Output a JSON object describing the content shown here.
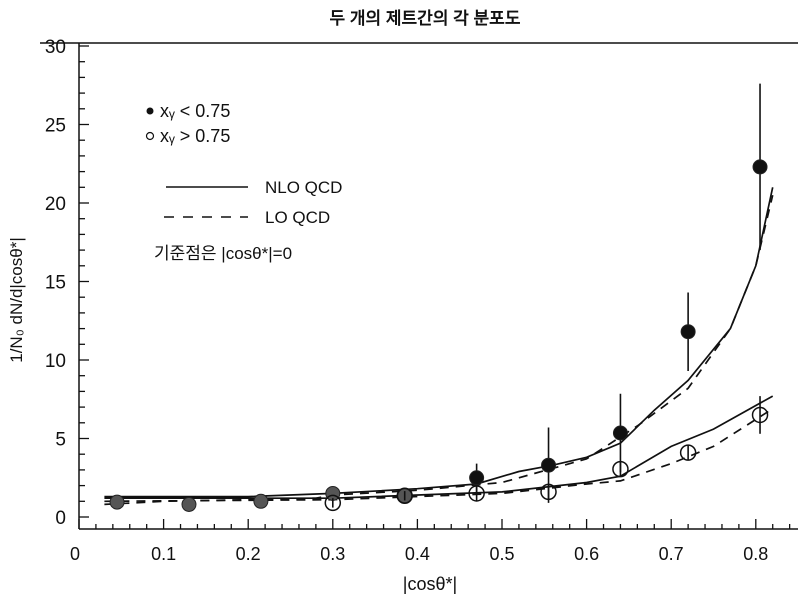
{
  "chart_data": {
    "type": "scatter",
    "title": "두 개의 제트간의 각 분포도",
    "xlabel": "|cosθ*|",
    "ylabel": "1/N₀ dN/d|cosθ*|",
    "xlim": [
      0,
      0.85
    ],
    "ylim": [
      0,
      30
    ],
    "xticks": [
      "0",
      "0.1",
      "0.2",
      "0.3",
      "0.4",
      "0.5",
      "0.6",
      "0.7",
      "0.8"
    ],
    "xtick_values": [
      0,
      0.1,
      0.2,
      0.3,
      0.4,
      0.5,
      0.6,
      0.7,
      0.8
    ],
    "yticks": [
      "0",
      "5",
      "10",
      "15",
      "20",
      "25",
      "30"
    ],
    "ytick_values": [
      0,
      5,
      10,
      15,
      20,
      25,
      30
    ],
    "grid": false,
    "legend_position": "top-left",
    "legend": {
      "filled": "xᵧ < 0.75",
      "open": "xᵧ > 0.75",
      "nlo": "NLO QCD",
      "lo": "LO QCD",
      "note": "기준점은 |cosθ*|=0"
    },
    "series": [
      {
        "name": "xᵧ < 0.75",
        "marker": "filled",
        "x": [
          0.045,
          0.13,
          0.215,
          0.3,
          0.385,
          0.47,
          0.555,
          0.64,
          0.72,
          0.805
        ],
        "y": [
          0.95,
          0.8,
          1.0,
          1.5,
          1.35,
          2.5,
          3.3,
          5.35,
          11.8,
          22.3
        ],
        "err": [
          0.3,
          0.3,
          0.2,
          0.3,
          0.3,
          0.9,
          2.4,
          2.5,
          2.5,
          5.3
        ]
      },
      {
        "name": "xᵧ > 0.75",
        "marker": "open",
        "x": [
          0.3,
          0.385,
          0.47,
          0.555,
          0.64,
          0.72,
          0.805
        ],
        "y": [
          0.9,
          1.35,
          1.5,
          1.6,
          3.05,
          4.1,
          6.5
        ],
        "err": [
          0.3,
          0.3,
          0.5,
          0.5,
          0.5,
          0.5,
          1.2
        ]
      },
      {
        "name": "NLO QCD (xᵧ < 0.75)",
        "style": "solid",
        "x": [
          0.03,
          0.2,
          0.3,
          0.4,
          0.47,
          0.52,
          0.56,
          0.6,
          0.64,
          0.68,
          0.72,
          0.77,
          0.8,
          0.82
        ],
        "y": [
          1.3,
          1.3,
          1.5,
          1.8,
          2.1,
          2.9,
          3.3,
          3.8,
          4.7,
          6.8,
          8.7,
          12.0,
          16.0,
          21.0
        ]
      },
      {
        "name": "LO QCD (xᵧ < 0.75)",
        "style": "dashed",
        "x": [
          0.03,
          0.1,
          0.2,
          0.28,
          0.3,
          0.4,
          0.5,
          0.6,
          0.66,
          0.72,
          0.77,
          0.8,
          0.82
        ],
        "y": [
          0.8,
          1.0,
          1.1,
          1.2,
          1.4,
          1.7,
          2.2,
          3.7,
          5.8,
          8.2,
          12.0,
          16.0,
          20.5
        ]
      },
      {
        "name": "NLO QCD (xᵧ > 0.75)",
        "style": "solid",
        "x": [
          0.03,
          0.3,
          0.5,
          0.6,
          0.64,
          0.7,
          0.75,
          0.82
        ],
        "y": [
          1.2,
          1.2,
          1.6,
          2.2,
          2.6,
          4.5,
          5.6,
          7.7
        ]
      },
      {
        "name": "LO QCD (xᵧ > 0.75)",
        "style": "dashed",
        "x": [
          0.03,
          0.3,
          0.5,
          0.6,
          0.64,
          0.7,
          0.75,
          0.82
        ],
        "y": [
          1.0,
          1.1,
          1.5,
          2.1,
          2.3,
          3.4,
          4.5,
          6.9
        ]
      }
    ]
  }
}
